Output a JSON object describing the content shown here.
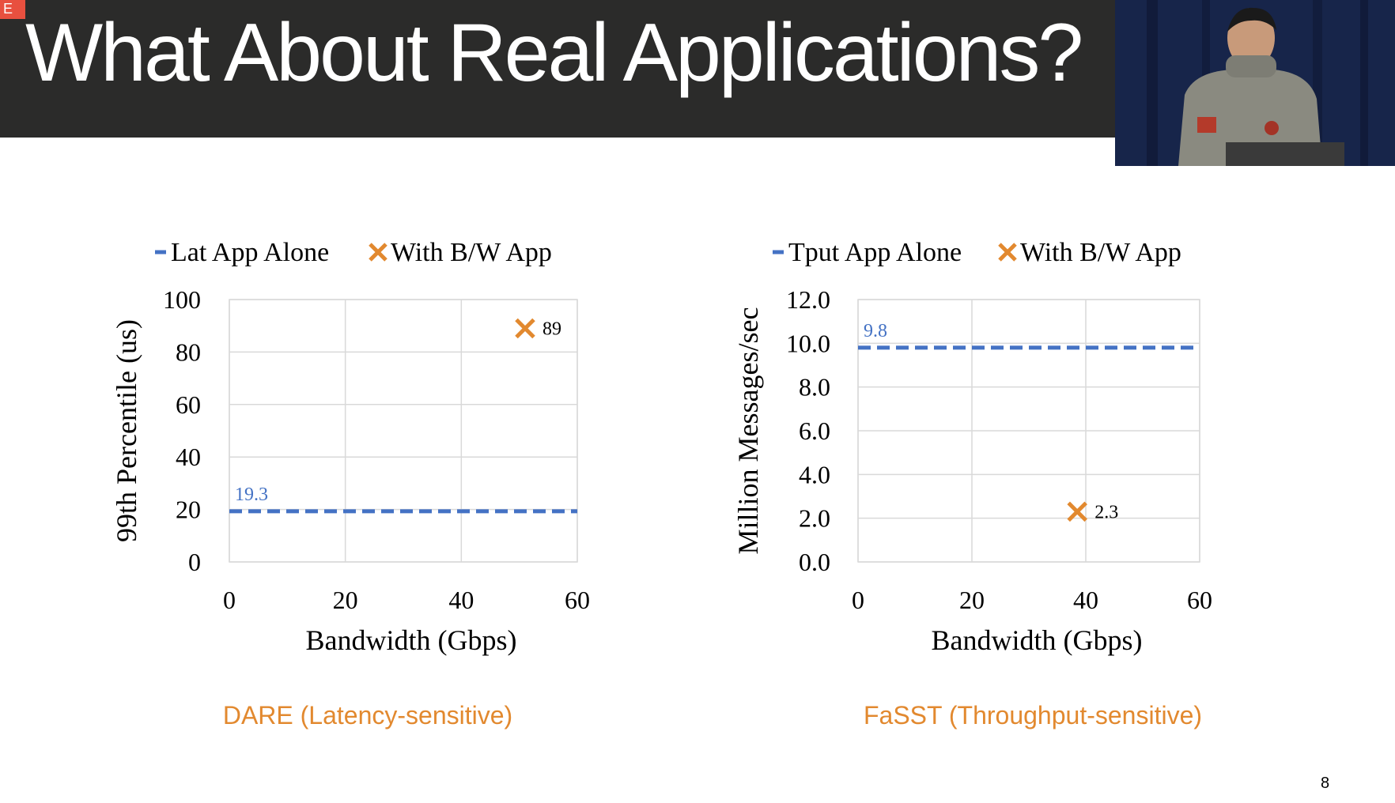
{
  "slide": {
    "title": "What About Real Applications?",
    "corner_badge": "E",
    "page_number": "8"
  },
  "colors": {
    "series_blue": "#4472c4",
    "marker_orange": "#e2892f",
    "caption_orange": "#e2892f",
    "grid": "#d9d9d9"
  },
  "chart_data": [
    {
      "type": "scatter",
      "caption": "DARE (Latency-sensitive)",
      "xlabel": "Bandwidth (Gbps)",
      "ylabel": "99th Percentile (us)",
      "xlim": [
        0,
        60
      ],
      "ylim": [
        0,
        100
      ],
      "xticks": [
        "0",
        "20",
        "40",
        "60"
      ],
      "yticks": [
        "0",
        "20",
        "40",
        "60",
        "80",
        "100"
      ],
      "grid": true,
      "legend_position": "top",
      "series": [
        {
          "name": "Lat App Alone",
          "style": "dashed-line",
          "x": [
            0,
            60
          ],
          "y": [
            19.3,
            19.3
          ],
          "label": "19.3"
        },
        {
          "name": "With B/W App",
          "style": "x-marker",
          "x": [
            51
          ],
          "y": [
            89
          ],
          "label": "89"
        }
      ]
    },
    {
      "type": "scatter",
      "caption": "FaSST (Throughput-sensitive)",
      "xlabel": "Bandwidth (Gbps)",
      "ylabel": "Million Messages/sec",
      "xlim": [
        0,
        60
      ],
      "ylim": [
        0,
        12
      ],
      "xticks": [
        "0",
        "20",
        "40",
        "60"
      ],
      "yticks": [
        "0.0",
        "2.0",
        "4.0",
        "6.0",
        "8.0",
        "10.0",
        "12.0"
      ],
      "grid": true,
      "legend_position": "top",
      "series": [
        {
          "name": "Tput App Alone",
          "style": "dashed-line",
          "x": [
            0,
            60
          ],
          "y": [
            9.8,
            9.8
          ],
          "label": "9.8"
        },
        {
          "name": "With B/W App",
          "style": "x-marker",
          "x": [
            38.5
          ],
          "y": [
            2.3
          ],
          "label": "2.3"
        }
      ]
    }
  ]
}
